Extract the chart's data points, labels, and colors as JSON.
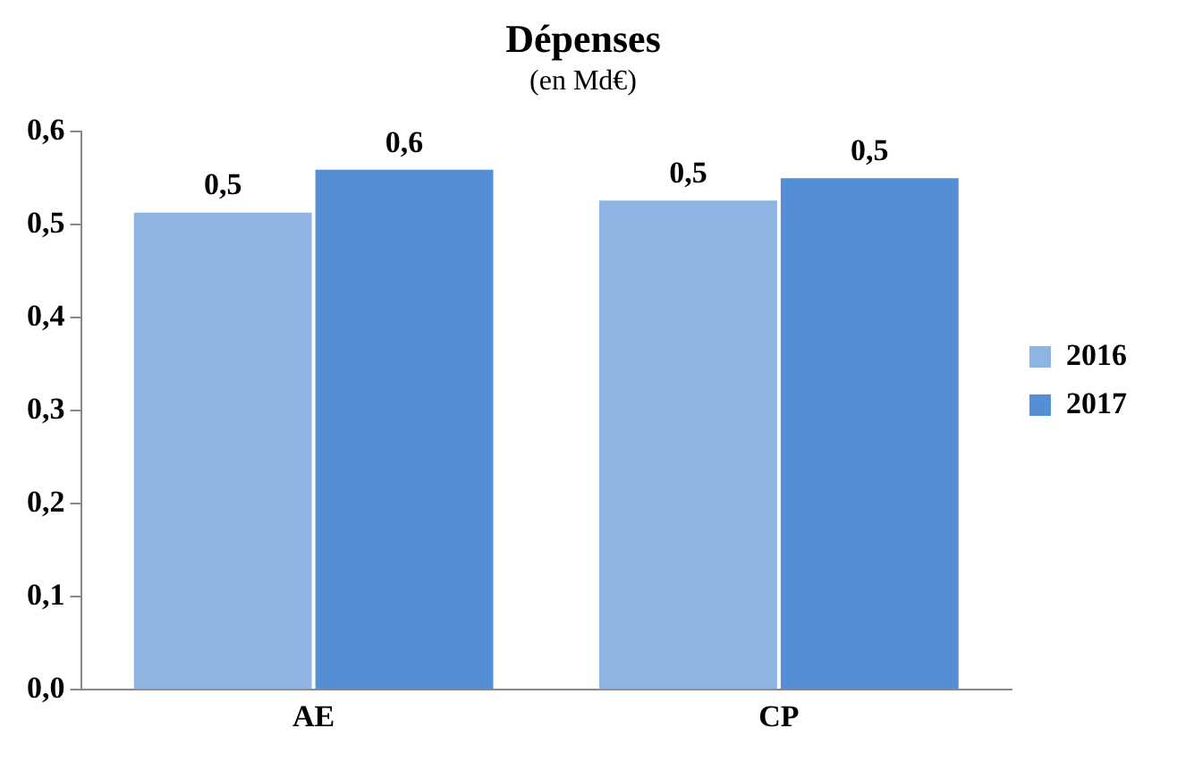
{
  "chart_data": {
    "type": "bar",
    "title": "Dépenses",
    "subtitle": "(en Md€)",
    "categories": [
      "AE",
      "CP"
    ],
    "series": [
      {
        "name": "2016",
        "color": "#8eb4e3",
        "values": [
          0.513,
          0.526
        ],
        "value_labels": [
          "0,5",
          "0,5"
        ]
      },
      {
        "name": "2017",
        "color": "#558ed5",
        "values": [
          0.559,
          0.55
        ],
        "value_labels": [
          "0,6",
          "0,5"
        ]
      }
    ],
    "ylim": [
      0,
      0.6
    ],
    "yticks": [
      {
        "value": 0,
        "label": "0,0"
      },
      {
        "value": 0.1,
        "label": "0,1"
      },
      {
        "value": 0.2,
        "label": "0,2"
      },
      {
        "value": 0.3,
        "label": "0,3"
      },
      {
        "value": 0.4,
        "label": "0,4"
      },
      {
        "value": 0.5,
        "label": "0,5"
      },
      {
        "value": 0.6,
        "label": "0,6"
      }
    ],
    "grid": false,
    "legend": "right"
  }
}
